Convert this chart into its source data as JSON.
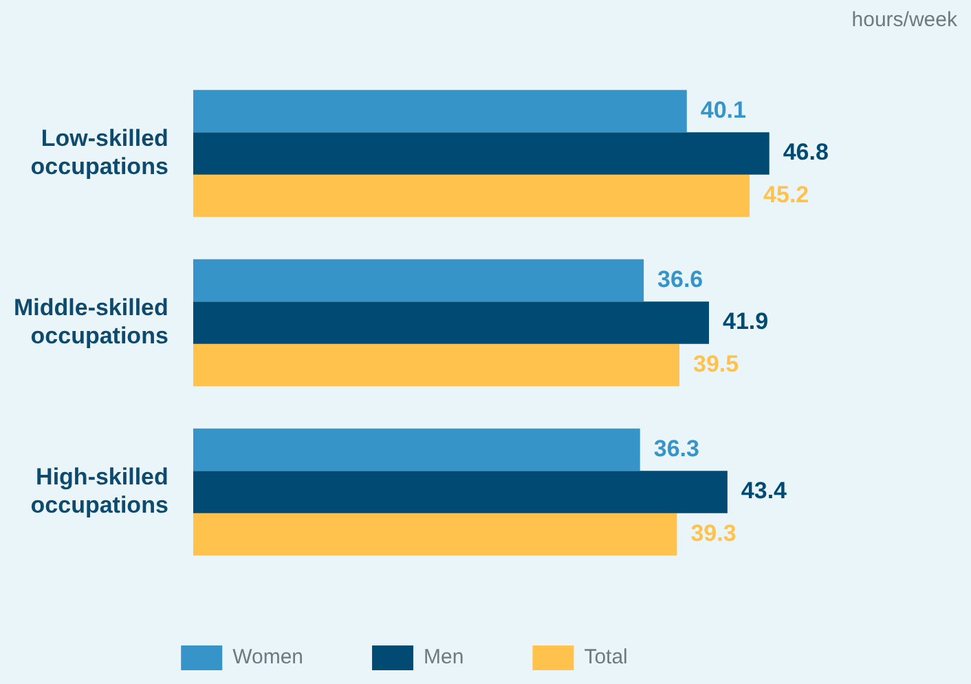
{
  "chart_data": {
    "type": "bar",
    "orientation": "horizontal",
    "categories": [
      "Low-skilled occupations",
      "Middle-skilled occupations",
      "High-skilled occupations"
    ],
    "series": [
      {
        "name": "Women",
        "color": "#3694c8",
        "values": [
          40.1,
          36.6,
          36.3
        ]
      },
      {
        "name": "Men",
        "color": "#004a74",
        "values": [
          46.8,
          41.9,
          43.4
        ]
      },
      {
        "name": "Total",
        "color": "#ffc34d",
        "values": [
          45.2,
          39.5,
          39.3
        ]
      }
    ],
    "data_labels": true,
    "legend": "bottom",
    "annotations": [
      "hours/week"
    ]
  }
}
